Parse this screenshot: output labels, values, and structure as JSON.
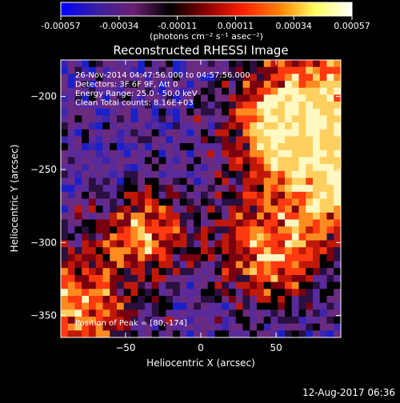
{
  "colorbar": {
    "ticks": [
      "-0.00057",
      "-0.00034",
      "-0.00011",
      "0.00011",
      "0.00034",
      "0.00057"
    ],
    "unit_label": "(photons cm⁻² s⁻¹ asec⁻²)",
    "colors": [
      "#0000ff",
      "#3a1fa0",
      "#6a2070",
      "#000000",
      "#8a0000",
      "#ff2000",
      "#ff8000",
      "#ffff60",
      "#ffffff"
    ]
  },
  "chart_data": {
    "type": "heatmap",
    "title": "Reconstructed RHESSI Image",
    "xlabel": "Heliocentric X (arcsec)",
    "ylabel": "Heliocentric Y (arcsec)",
    "xlim": [
      -93,
      93
    ],
    "ylim": [
      -365,
      -175
    ],
    "xticks": [
      -50,
      0,
      50
    ],
    "yticks": [
      -200,
      -250,
      -300,
      -350
    ],
    "info_lines": [
      "26-Nov-2014 04:47:56.000 to 04:57:56.000",
      "Detectors: 3F 6F 9F, Att 0",
      "Energy Range: 25.0 - 50.0 keV",
      "Clean     Total counts: 8.16E+03"
    ],
    "peak_label": "Position of Peak = [80,-174]",
    "peak_position": [
      80,
      -174
    ]
  },
  "footer": {
    "timestamp": "12-Aug-2017 06:36"
  }
}
